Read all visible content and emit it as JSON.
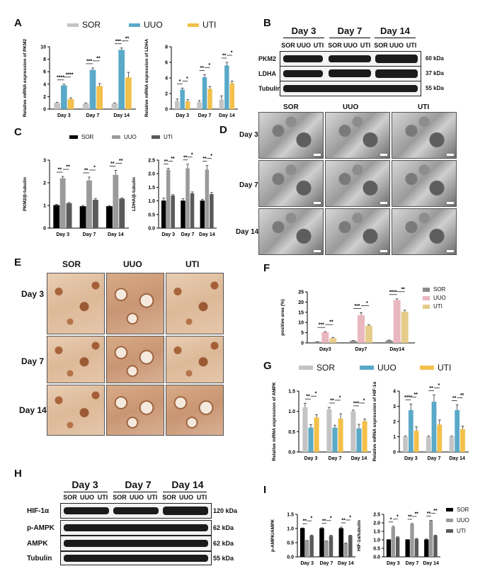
{
  "panels": {
    "A": "A",
    "B": "B",
    "C": "C",
    "D": "D",
    "E": "E",
    "F": "F",
    "G": "G",
    "H": "H",
    "I": "I"
  },
  "legend_A": {
    "items": [
      "SOR",
      "UUO",
      "UTI"
    ],
    "colors": [
      "#c4c4c4",
      "#5aa9c8",
      "#f3c04a"
    ]
  },
  "legend_C": {
    "items": [
      "SOR",
      "UUO",
      "UTI"
    ],
    "colors": [
      "#000000",
      "#9a9a9a",
      "#5a5a5a"
    ]
  },
  "legend_F": {
    "items": [
      "SOR",
      "UUO",
      "UTI"
    ],
    "colors": [
      "#8c8c8c",
      "#e9b7bf",
      "#e6cc8a"
    ]
  },
  "legend_G": {
    "items": [
      "SOR",
      "UUO",
      "UTI"
    ],
    "colors": [
      "#c4c4c4",
      "#5aa9c8",
      "#f3c04a"
    ]
  },
  "legend_I": {
    "items": [
      "SOR",
      "UUO",
      "UTI"
    ],
    "colors": [
      "#000000",
      "#9a9a9a",
      "#5a5a5a"
    ]
  },
  "blot_B": {
    "days": [
      "Day 3",
      "Day 7",
      "Day 14"
    ],
    "lanes": [
      "SOR",
      "UUO",
      "UTI",
      "SOR",
      "UUO",
      "UTI",
      "SOR",
      "UUO",
      "UTI"
    ],
    "rows": [
      {
        "label": "PKM2",
        "kda": "60 kDa"
      },
      {
        "label": "LDHA",
        "kda": "37 kDa"
      },
      {
        "label": "Tubulin",
        "kda": "55 kDa"
      }
    ]
  },
  "blot_H": {
    "days": [
      "Day 3",
      "Day 7",
      "Day 14"
    ],
    "lanes": [
      "SOR",
      "UUO",
      "UTI",
      "SOR",
      "UUO",
      "UTI",
      "SOR",
      "UUO",
      "UTI"
    ],
    "rows": [
      {
        "label": "HIF-1α",
        "kda": "120 kDa"
      },
      {
        "label": "p-AMPK",
        "kda": "62 kDa"
      },
      {
        "label": "AMPK",
        "kda": "62 kDa"
      },
      {
        "label": "Tubulin",
        "kda": "55 kDa"
      }
    ]
  },
  "images_D": {
    "cols": [
      "SOR",
      "UUO",
      "UTI"
    ],
    "rows": [
      "Day 3",
      "Day 7",
      "Day 14"
    ]
  },
  "images_E": {
    "cols": [
      "SOR",
      "UUO",
      "UTI"
    ],
    "rows": [
      "Day 3",
      "Day 7",
      "Day 14"
    ]
  },
  "chart_data": [
    {
      "id": "A1",
      "type": "bar",
      "categories": [
        "Day 3",
        "Day 7",
        "Day 14"
      ],
      "ylabel": "Relative mRNA expression of PKM2",
      "ylim": [
        0,
        10
      ],
      "yticks": [
        0,
        2,
        4,
        6,
        8,
        10
      ],
      "series": [
        {
          "name": "SOR",
          "values": [
            1.0,
            0.9,
            0.9
          ],
          "err": [
            0.1,
            0.1,
            0.1
          ]
        },
        {
          "name": "UUO",
          "values": [
            3.8,
            6.3,
            9.5
          ],
          "err": [
            0.2,
            0.3,
            0.3
          ]
        },
        {
          "name": "UTI",
          "values": [
            1.6,
            3.7,
            5.1
          ],
          "err": [
            0.2,
            0.4,
            0.8
          ]
        }
      ],
      "sig": [
        [
          "****",
          "****"
        ],
        [
          "***",
          "**"
        ],
        [
          "***",
          "**"
        ]
      ]
    },
    {
      "id": "A2",
      "type": "bar",
      "categories": [
        "Day 3",
        "Day 7",
        "Day 14"
      ],
      "ylabel": "Relative mRNA expression of LDHA",
      "ylim": [
        0,
        8
      ],
      "yticks": [
        0,
        2,
        4,
        6,
        8
      ],
      "series": [
        {
          "name": "SOR",
          "values": [
            1.0,
            0.9,
            1.2
          ],
          "err": [
            0.3,
            0.2,
            0.5
          ]
        },
        {
          "name": "UUO",
          "values": [
            2.5,
            4.1,
            5.6
          ],
          "err": [
            0.2,
            0.3,
            0.4
          ]
        },
        {
          "name": "UTI",
          "values": [
            1.0,
            2.6,
            3.3
          ],
          "err": [
            0.2,
            0.3,
            0.3
          ]
        }
      ],
      "sig": [
        [
          "*",
          "*"
        ],
        [
          "**",
          "*"
        ],
        [
          "**",
          "*"
        ]
      ]
    },
    {
      "id": "C1",
      "type": "bar",
      "categories": [
        "Day 3",
        "Day 7",
        "Day 14"
      ],
      "ylabel": "PKM2/β-tubulin",
      "ylim": [
        0,
        3
      ],
      "yticks": [
        0,
        1,
        2,
        3
      ],
      "series": [
        {
          "name": "SOR",
          "values": [
            1.0,
            0.95,
            0.95
          ],
          "err": [
            0.05,
            0.05,
            0.04
          ]
        },
        {
          "name": "UUO",
          "values": [
            2.2,
            2.1,
            2.35
          ],
          "err": [
            0.08,
            0.15,
            0.2
          ]
        },
        {
          "name": "UTI",
          "values": [
            1.1,
            1.25,
            1.3
          ],
          "err": [
            0.03,
            0.06,
            0.03
          ]
        }
      ],
      "sig": [
        [
          "**",
          "**"
        ],
        [
          "**",
          "*"
        ],
        [
          "**",
          "**"
        ]
      ]
    },
    {
      "id": "C2",
      "type": "bar",
      "categories": [
        "Day 3",
        "Day 7",
        "Day 14"
      ],
      "ylabel": "LDHA/β-tubulin",
      "ylim": [
        0,
        2.5
      ],
      "yticks": [
        0.0,
        0.5,
        1.0,
        1.5,
        2.0,
        2.5
      ],
      "series": [
        {
          "name": "SOR",
          "values": [
            1.0,
            1.0,
            1.0
          ],
          "err": [
            0.1,
            0.08,
            0.06
          ]
        },
        {
          "name": "UUO",
          "values": [
            2.15,
            2.2,
            2.15
          ],
          "err": [
            0.05,
            0.15,
            0.15
          ]
        },
        {
          "name": "UTI",
          "values": [
            1.2,
            1.28,
            1.25
          ],
          "err": [
            0.03,
            0.05,
            0.06
          ]
        }
      ],
      "sig": [
        [
          "**",
          "**"
        ],
        [
          "**",
          "*"
        ],
        [
          "**",
          "*"
        ]
      ]
    },
    {
      "id": "F",
      "type": "bar",
      "categories": [
        "Day3",
        "Day7",
        "Day14"
      ],
      "ylabel": "positive area (%)",
      "ylim": [
        0,
        25
      ],
      "yticks": [
        0,
        5,
        10,
        15,
        20,
        25
      ],
      "series": [
        {
          "name": "SOR",
          "values": [
            0.5,
            1.0,
            1.2
          ],
          "err": [
            0.1,
            0.2,
            0.2
          ]
        },
        {
          "name": "UUO",
          "values": [
            5.2,
            13.6,
            21.0
          ],
          "err": [
            0.3,
            1.2,
            0.6
          ]
        },
        {
          "name": "UTI",
          "values": [
            2.3,
            8.4,
            15.3
          ],
          "err": [
            0.4,
            0.5,
            0.7
          ]
        }
      ],
      "sig": [
        [
          "***",
          "**"
        ],
        [
          "***",
          "*"
        ],
        [
          "****",
          "**"
        ]
      ]
    },
    {
      "id": "G1",
      "type": "bar",
      "categories": [
        "Day 3",
        "Day 7",
        "Day 14"
      ],
      "ylabel": "Relative mRNA expression of AMPK",
      "ylim": [
        0,
        1.5
      ],
      "yticks": [
        0.0,
        0.5,
        1.0,
        1.5
      ],
      "series": [
        {
          "name": "SOR",
          "values": [
            1.1,
            1.05,
            1.0
          ],
          "err": [
            0.1,
            0.05,
            0.03
          ]
        },
        {
          "name": "UUO",
          "values": [
            0.6,
            0.6,
            0.58
          ],
          "err": [
            0.07,
            0.06,
            0.1
          ]
        },
        {
          "name": "UTI",
          "values": [
            0.85,
            0.82,
            0.76
          ],
          "err": [
            0.07,
            0.12,
            0.05
          ]
        }
      ],
      "sig": [
        [
          "**",
          "*"
        ],
        [
          "**",
          "*"
        ],
        [
          "***",
          "*"
        ]
      ]
    },
    {
      "id": "G2",
      "type": "bar",
      "categories": [
        "Day 3",
        "Day 7",
        "Day 14"
      ],
      "ylabel": "Relative mRNA expression of HIF-1α",
      "ylim": [
        0,
        4
      ],
      "yticks": [
        0,
        1,
        2,
        3,
        4
      ],
      "series": [
        {
          "name": "SOR",
          "values": [
            1.0,
            1.0,
            1.0
          ],
          "err": [
            0.05,
            0.05,
            0.04
          ]
        },
        {
          "name": "UUO",
          "values": [
            2.75,
            3.3,
            2.75
          ],
          "err": [
            0.4,
            0.45,
            0.35
          ]
        },
        {
          "name": "UTI",
          "values": [
            1.4,
            1.8,
            1.5
          ],
          "err": [
            0.25,
            0.3,
            0.2
          ]
        }
      ],
      "sig": [
        [
          "****",
          "**"
        ],
        [
          "**",
          "*"
        ],
        [
          "**",
          "**"
        ]
      ]
    },
    {
      "id": "I1",
      "type": "bar",
      "categories": [
        "Day 3",
        "Day 7",
        "Day 14"
      ],
      "ylabel": "p-AMPK/AMPK",
      "ylim": [
        0,
        1.5
      ],
      "yticks": [
        0.0,
        0.5,
        1.0,
        1.5
      ],
      "series": [
        {
          "name": "SOR",
          "values": [
            1.0,
            1.0,
            1.0
          ],
          "err": [
            0.02,
            0.03,
            0.05
          ]
        },
        {
          "name": "UUO",
          "values": [
            0.57,
            0.55,
            0.48
          ],
          "err": [
            0.01,
            0.01,
            0.01
          ]
        },
        {
          "name": "UTI",
          "values": [
            0.75,
            0.74,
            0.75
          ],
          "err": [
            0.02,
            0.02,
            0.01
          ]
        }
      ],
      "sig": [
        [
          "**",
          "*"
        ],
        [
          "**",
          "*"
        ],
        [
          "**",
          "*"
        ]
      ]
    },
    {
      "id": "I2",
      "type": "bar",
      "categories": [
        "Day 3",
        "Day 7",
        "Day 14"
      ],
      "ylabel": "HIF-1α/tubulin",
      "ylim": [
        0,
        2.5
      ],
      "yticks": [
        0.0,
        0.5,
        1.0,
        1.5,
        2.0,
        2.5
      ],
      "series": [
        {
          "name": "SOR",
          "values": [
            1.0,
            1.0,
            1.0
          ],
          "err": [
            0.02,
            0.02,
            0.05
          ]
        },
        {
          "name": "UUO",
          "values": [
            1.75,
            1.93,
            2.12
          ],
          "err": [
            0.05,
            0.03,
            0.03
          ]
        },
        {
          "name": "UTI",
          "values": [
            1.15,
            1.05,
            1.25
          ],
          "err": [
            0.03,
            0.03,
            0.03
          ]
        }
      ],
      "sig": [
        [
          "*",
          "*"
        ],
        [
          "**",
          "**"
        ],
        [
          "**",
          "**"
        ]
      ]
    }
  ]
}
